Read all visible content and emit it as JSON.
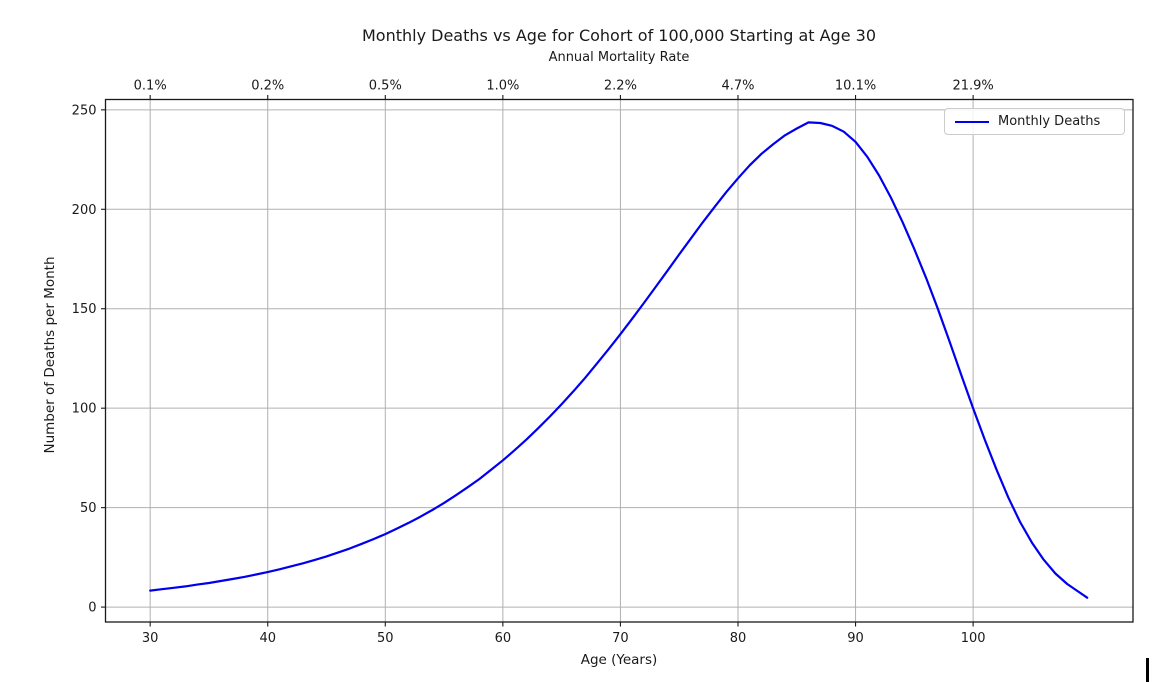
{
  "figure": {
    "background_color": "#ffffff",
    "text_color": "#1a1a1a"
  },
  "chart_data": {
    "type": "line",
    "title": "Monthly Deaths vs Age for Cohort of 100,000 Starting at Age 30",
    "xlabel": "Age (Years)",
    "ylabel": "Number of Deaths per Month",
    "top_axis_label": "Annual Mortality Rate",
    "xlim": [
      26.2,
      113.6
    ],
    "ylim": [
      -7.5,
      255.2
    ],
    "grid": true,
    "grid_color": "#b0b0b0",
    "spine_color": "#1a1a1a",
    "line_color": "#0000ee",
    "line_width": 2.2,
    "x_ticks": [
      30,
      40,
      50,
      60,
      70,
      80,
      90,
      100
    ],
    "x_tick_labels": [
      "30",
      "40",
      "50",
      "60",
      "70",
      "80",
      "90",
      "100"
    ],
    "top_tick_positions": [
      30,
      40,
      50,
      60,
      70,
      80,
      90,
      100
    ],
    "top_tick_labels": [
      "0.1%",
      "0.2%",
      "0.5%",
      "1.0%",
      "2.2%",
      "4.7%",
      "10.1%",
      "21.9%"
    ],
    "y_ticks": [
      0,
      50,
      100,
      150,
      200,
      250
    ],
    "y_tick_labels": [
      "0",
      "50",
      "100",
      "150",
      "200",
      "250"
    ],
    "legend": {
      "position": "upper right",
      "entries": [
        {
          "label": "Monthly Deaths",
          "color": "#0000ee"
        }
      ]
    },
    "series": [
      {
        "name": "Monthly Deaths",
        "points": [
          [
            30,
            8.3
          ],
          [
            31,
            9.0
          ],
          [
            32,
            9.7
          ],
          [
            33,
            10.4
          ],
          [
            34,
            11.3
          ],
          [
            35,
            12.1
          ],
          [
            36,
            13.1
          ],
          [
            37,
            14.1
          ],
          [
            38,
            15.2
          ],
          [
            39,
            16.4
          ],
          [
            40,
            17.6
          ],
          [
            41,
            19.0
          ],
          [
            42,
            20.5
          ],
          [
            43,
            22.0
          ],
          [
            44,
            23.7
          ],
          [
            45,
            25.5
          ],
          [
            46,
            27.5
          ],
          [
            47,
            29.5
          ],
          [
            48,
            31.8
          ],
          [
            49,
            34.2
          ],
          [
            50,
            36.7
          ],
          [
            51,
            39.5
          ],
          [
            52,
            42.4
          ],
          [
            53,
            45.5
          ],
          [
            54,
            48.8
          ],
          [
            55,
            52.4
          ],
          [
            56,
            56.2
          ],
          [
            57,
            60.2
          ],
          [
            58,
            64.4
          ],
          [
            59,
            69.0
          ],
          [
            60,
            73.8
          ],
          [
            61,
            78.9
          ],
          [
            62,
            84.2
          ],
          [
            63,
            89.9
          ],
          [
            64,
            95.8
          ],
          [
            65,
            102.0
          ],
          [
            66,
            108.5
          ],
          [
            67,
            115.3
          ],
          [
            68,
            122.4
          ],
          [
            69,
            129.7
          ],
          [
            70,
            137.2
          ],
          [
            71,
            145.0
          ],
          [
            72,
            152.9
          ],
          [
            73,
            161.0
          ],
          [
            74,
            169.1
          ],
          [
            75,
            177.3
          ],
          [
            76,
            185.4
          ],
          [
            77,
            193.4
          ],
          [
            78,
            201.1
          ],
          [
            79,
            208.6
          ],
          [
            80,
            215.6
          ],
          [
            81,
            222.1
          ],
          [
            82,
            227.9
          ],
          [
            83,
            232.8
          ],
          [
            84,
            237.2
          ],
          [
            85,
            240.6
          ],
          [
            86,
            243.7
          ],
          [
            87,
            243.4
          ],
          [
            88,
            242.0
          ],
          [
            89,
            239.0
          ],
          [
            90,
            233.9
          ],
          [
            91,
            226.4
          ],
          [
            92,
            217.0
          ],
          [
            93,
            206.0
          ],
          [
            94,
            193.5
          ],
          [
            95,
            180.0
          ],
          [
            96,
            165.5
          ],
          [
            97,
            150.0
          ],
          [
            98,
            133.5
          ],
          [
            99,
            116.5
          ],
          [
            100,
            100.0
          ],
          [
            101,
            84.0
          ],
          [
            102,
            69.0
          ],
          [
            103,
            55.0
          ],
          [
            104,
            42.8
          ],
          [
            105,
            32.4
          ],
          [
            106,
            23.8
          ],
          [
            107,
            16.9
          ],
          [
            108,
            11.6
          ],
          [
            109,
            7.6
          ],
          [
            109.7,
            4.7
          ]
        ]
      }
    ]
  }
}
